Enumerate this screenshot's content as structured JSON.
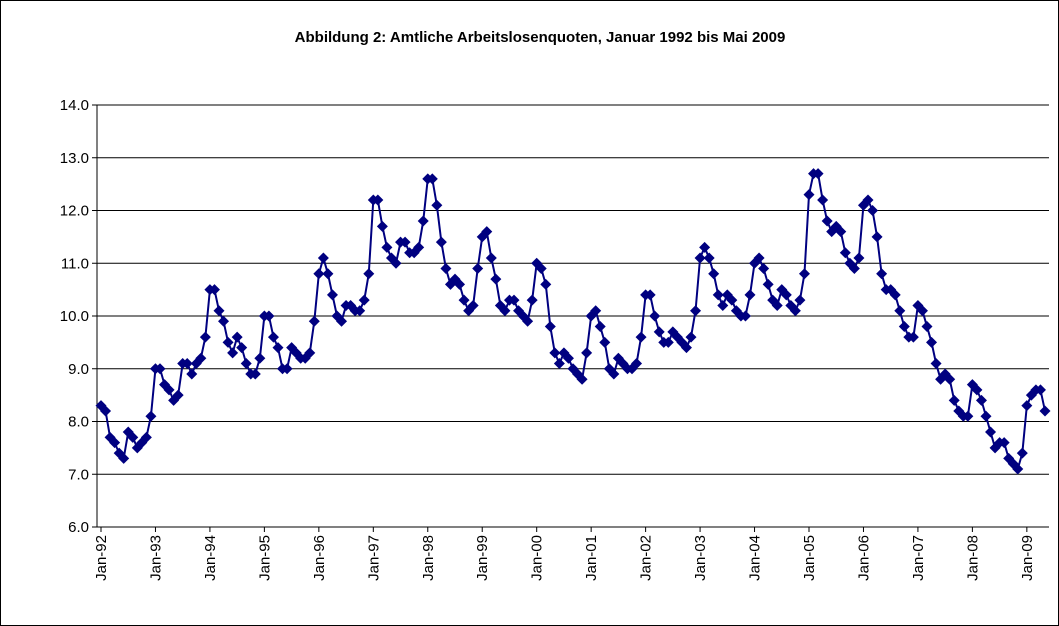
{
  "chart_data": {
    "type": "line",
    "title": "Abbildung 2: Amtliche Arbeitslosenquoten, Januar 1992 bis Mai 2009",
    "categories": [
      "Jan-92",
      null,
      null,
      null,
      null,
      null,
      null,
      null,
      null,
      null,
      null,
      null,
      "Jan-93",
      null,
      null,
      null,
      null,
      null,
      null,
      null,
      null,
      null,
      null,
      null,
      "Jan-94",
      null,
      null,
      null,
      null,
      null,
      null,
      null,
      null,
      null,
      null,
      null,
      "Jan-95",
      null,
      null,
      null,
      null,
      null,
      null,
      null,
      null,
      null,
      null,
      null,
      "Jan-96",
      null,
      null,
      null,
      null,
      null,
      null,
      null,
      null,
      null,
      null,
      null,
      "Jan-97",
      null,
      null,
      null,
      null,
      null,
      null,
      null,
      null,
      null,
      null,
      null,
      "Jan-98",
      null,
      null,
      null,
      null,
      null,
      null,
      null,
      null,
      null,
      null,
      null,
      "Jan-99",
      null,
      null,
      null,
      null,
      null,
      null,
      null,
      null,
      null,
      null,
      null,
      "Jan-00",
      null,
      null,
      null,
      null,
      null,
      null,
      null,
      null,
      null,
      null,
      null,
      "Jan-01",
      null,
      null,
      null,
      null,
      null,
      null,
      null,
      null,
      null,
      null,
      null,
      "Jan-02",
      null,
      null,
      null,
      null,
      null,
      null,
      null,
      null,
      null,
      null,
      null,
      "Jan-03",
      null,
      null,
      null,
      null,
      null,
      null,
      null,
      null,
      null,
      null,
      null,
      "Jan-04",
      null,
      null,
      null,
      null,
      null,
      null,
      null,
      null,
      null,
      null,
      null,
      "Jan-05",
      null,
      null,
      null,
      null,
      null,
      null,
      null,
      null,
      null,
      null,
      null,
      "Jan-06",
      null,
      null,
      null,
      null,
      null,
      null,
      null,
      null,
      null,
      null,
      null,
      "Jan-07",
      null,
      null,
      null,
      null,
      null,
      null,
      null,
      null,
      null,
      null,
      null,
      "Jan-08",
      null,
      null,
      null,
      null,
      null,
      null,
      null,
      null,
      null,
      null,
      null,
      "Jan-09",
      null,
      null,
      null,
      null
    ],
    "series": [
      {
        "color": "#000080",
        "values": [
          8.3,
          8.2,
          7.7,
          7.6,
          7.4,
          7.3,
          7.8,
          7.7,
          7.5,
          7.6,
          7.7,
          8.1,
          9.0,
          9.0,
          8.7,
          8.6,
          8.4,
          8.5,
          9.1,
          9.1,
          8.9,
          9.1,
          9.2,
          9.6,
          10.5,
          10.5,
          10.1,
          9.9,
          9.5,
          9.3,
          9.6,
          9.4,
          9.1,
          8.9,
          8.9,
          9.2,
          10.0,
          10.0,
          9.6,
          9.4,
          9.0,
          9.0,
          9.4,
          9.3,
          9.2,
          9.2,
          9.3,
          9.9,
          10.8,
          11.1,
          10.8,
          10.4,
          10.0,
          9.9,
          10.2,
          10.2,
          10.1,
          10.1,
          10.3,
          10.8,
          12.2,
          12.2,
          11.7,
          11.3,
          11.1,
          11.0,
          11.4,
          11.4,
          11.2,
          11.2,
          11.3,
          11.8,
          12.6,
          12.6,
          12.1,
          11.4,
          10.9,
          10.6,
          10.7,
          10.6,
          10.3,
          10.1,
          10.2,
          10.9,
          11.5,
          11.6,
          11.1,
          10.7,
          10.2,
          10.1,
          10.3,
          10.3,
          10.1,
          10.0,
          9.9,
          10.3,
          11.0,
          10.9,
          10.6,
          9.8,
          9.3,
          9.1,
          9.3,
          9.2,
          9.0,
          8.9,
          8.8,
          9.3,
          10.0,
          10.1,
          9.8,
          9.5,
          9.0,
          8.9,
          9.2,
          9.1,
          9.0,
          9.0,
          9.1,
          9.6,
          10.4,
          10.4,
          10.0,
          9.7,
          9.5,
          9.5,
          9.7,
          9.6,
          9.5,
          9.4,
          9.6,
          10.1,
          11.1,
          11.3,
          11.1,
          10.8,
          10.4,
          10.2,
          10.4,
          10.3,
          10.1,
          10.0,
          10.0,
          10.4,
          11.0,
          11.1,
          10.9,
          10.6,
          10.3,
          10.2,
          10.5,
          10.4,
          10.2,
          10.1,
          10.3,
          10.8,
          12.3,
          12.7,
          12.7,
          12.2,
          11.8,
          11.6,
          11.7,
          11.6,
          11.2,
          11.0,
          10.9,
          11.1,
          12.1,
          12.2,
          12.0,
          11.5,
          10.8,
          10.5,
          10.5,
          10.4,
          10.1,
          9.8,
          9.6,
          9.6,
          10.2,
          10.1,
          9.8,
          9.5,
          9.1,
          8.8,
          8.9,
          8.8,
          8.4,
          8.2,
          8.1,
          8.1,
          8.7,
          8.6,
          8.4,
          8.1,
          7.8,
          7.5,
          7.6,
          7.6,
          7.3,
          7.2,
          7.1,
          7.4,
          8.3,
          8.5,
          8.6,
          8.6,
          8.2
        ]
      }
    ],
    "ylim": [
      6,
      14
    ],
    "yticks": [
      {
        "value": 6,
        "label": "6.0"
      },
      {
        "value": 7,
        "label": "7.0"
      },
      {
        "value": 8,
        "label": "8.0"
      },
      {
        "value": 9,
        "label": "9.0"
      },
      {
        "value": 10,
        "label": "10.0"
      },
      {
        "value": 11,
        "label": "11.0"
      },
      {
        "value": 12,
        "label": "12.0"
      },
      {
        "value": 13,
        "label": "13.0"
      },
      {
        "value": 14,
        "label": "14.0"
      }
    ],
    "grid": true
  }
}
